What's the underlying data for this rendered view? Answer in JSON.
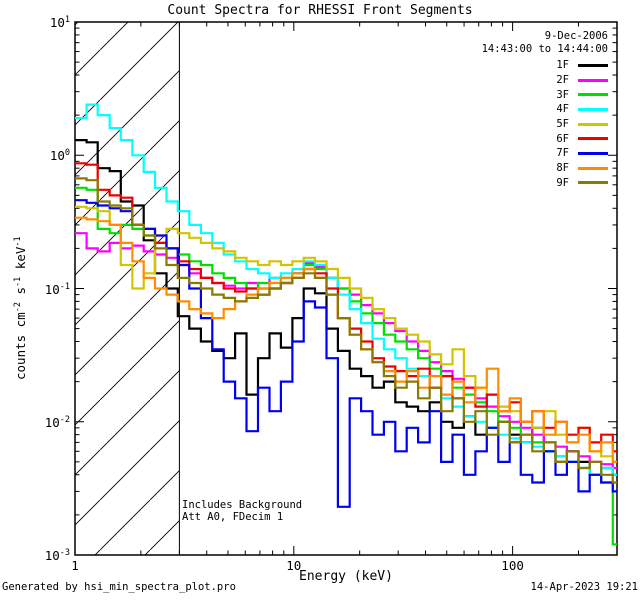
{
  "title": "Count Spectra for RHESSI Front Segments",
  "header": {
    "date_line1": "9-Dec-2006",
    "date_line2": "14:43:00 to 14:44:00"
  },
  "annotations": {
    "line1": "Includes Background",
    "line2": "Att A0, FDecim 1"
  },
  "footer": {
    "left": "Generated by hsi_min_spectra_plot.pro",
    "right": "14-Apr-2023 19:21"
  },
  "chart_data": {
    "type": "line",
    "style": "histogram-step",
    "title": "Count Spectra for RHESSI Front Segments",
    "xlabel": "Energy (keV)",
    "ylabel_plain": "counts cm^-2 s^-1 keV^-1",
    "ylabel_segments": [
      {
        "t": "counts cm"
      },
      {
        "t": "-2",
        "sup": true
      },
      {
        "t": " s"
      },
      {
        "t": "-1",
        "sup": true
      },
      {
        "t": " keV"
      },
      {
        "t": "-1",
        "sup": true
      }
    ],
    "xscale": "log",
    "yscale": "log",
    "xlim": [
      1,
      300
    ],
    "ylim": [
      0.001,
      10
    ],
    "xticks": [
      1,
      10,
      100
    ],
    "ytick_exponents": [
      1,
      0,
      -1,
      -2,
      -3
    ],
    "grid": false,
    "legend_position": "top-right",
    "excluded_region": {
      "xmin": 1,
      "xmax": 3,
      "style": "diagonal-hatch"
    },
    "x": [
      1.0,
      1.13,
      1.27,
      1.44,
      1.62,
      1.83,
      2.06,
      2.32,
      2.62,
      2.95,
      3.33,
      3.76,
      4.24,
      4.78,
      5.39,
      6.08,
      6.86,
      7.74,
      8.73,
      9.85,
      11.1,
      12.5,
      14.1,
      15.9,
      18.0,
      20.3,
      22.9,
      25.8,
      29.1,
      32.8,
      37.0,
      41.8,
      47.1,
      53.1,
      59.9,
      67.6,
      76.2,
      86.0,
      97.0,
      109,
      123,
      139,
      157,
      177,
      200,
      225,
      254,
      287
    ],
    "series": [
      {
        "name": "1F",
        "color": "#000000",
        "values": [
          1.3,
          1.25,
          0.8,
          0.76,
          0.45,
          0.42,
          0.23,
          0.13,
          0.1,
          0.062,
          0.05,
          0.04,
          0.034,
          0.03,
          0.046,
          0.016,
          0.03,
          0.046,
          0.036,
          0.06,
          0.1,
          0.092,
          0.05,
          0.034,
          0.025,
          0.022,
          0.018,
          0.02,
          0.014,
          0.013,
          0.012,
          0.014,
          0.01,
          0.009,
          0.011,
          0.008,
          0.009,
          0.01,
          0.008,
          0.007,
          0.009,
          0.006,
          0.005,
          0.006,
          0.005,
          0.004,
          0.0045,
          0.004
        ]
      },
      {
        "name": "2F",
        "color": "#ff00ff",
        "values": [
          0.26,
          0.2,
          0.19,
          0.22,
          0.2,
          0.21,
          0.19,
          0.18,
          0.17,
          0.15,
          0.13,
          0.12,
          0.11,
          0.105,
          0.1,
          0.11,
          0.1,
          0.12,
          0.11,
          0.13,
          0.155,
          0.145,
          0.12,
          0.1,
          0.09,
          0.075,
          0.065,
          0.055,
          0.048,
          0.04,
          0.034,
          0.028,
          0.024,
          0.021,
          0.018,
          0.015,
          0.013,
          0.011,
          0.01,
          0.009,
          0.008,
          0.007,
          0.0065,
          0.006,
          0.0055,
          0.005,
          0.0048,
          0.0045
        ]
      },
      {
        "name": "3F",
        "color": "#00e000",
        "values": [
          0.57,
          0.55,
          0.28,
          0.26,
          0.3,
          0.28,
          0.25,
          0.22,
          0.2,
          0.18,
          0.16,
          0.15,
          0.13,
          0.12,
          0.11,
          0.1,
          0.11,
          0.1,
          0.12,
          0.13,
          0.15,
          0.14,
          0.12,
          0.1,
          0.08,
          0.065,
          0.055,
          0.045,
          0.04,
          0.035,
          0.03,
          0.025,
          0.022,
          0.018,
          0.016,
          0.014,
          0.012,
          0.01,
          0.009,
          0.008,
          0.007,
          0.006,
          0.0055,
          0.005,
          0.0045,
          0.004,
          0.0035,
          0.0012
        ]
      },
      {
        "name": "4F",
        "color": "#00ffff",
        "values": [
          1.9,
          2.4,
          2.0,
          1.6,
          1.3,
          1.0,
          0.75,
          0.57,
          0.45,
          0.38,
          0.3,
          0.26,
          0.22,
          0.18,
          0.16,
          0.14,
          0.13,
          0.12,
          0.13,
          0.14,
          0.16,
          0.15,
          0.12,
          0.09,
          0.07,
          0.055,
          0.042,
          0.035,
          0.03,
          0.025,
          0.022,
          0.018,
          0.015,
          0.013,
          0.011,
          0.01,
          0.009,
          0.008,
          0.0075,
          0.007,
          0.0065,
          0.006,
          0.0055,
          0.005,
          0.0045,
          0.004,
          0.0045,
          0.004
        ]
      },
      {
        "name": "5F",
        "color": "#d1c400",
        "values": [
          0.41,
          0.4,
          0.38,
          0.3,
          0.15,
          0.1,
          0.13,
          0.25,
          0.28,
          0.26,
          0.24,
          0.22,
          0.2,
          0.19,
          0.17,
          0.16,
          0.15,
          0.16,
          0.15,
          0.16,
          0.17,
          0.16,
          0.14,
          0.12,
          0.1,
          0.085,
          0.07,
          0.06,
          0.05,
          0.045,
          0.04,
          0.032,
          0.027,
          0.035,
          0.022,
          0.018,
          0.016,
          0.013,
          0.012,
          0.01,
          0.009,
          0.012,
          0.008,
          0.007,
          0.009,
          0.006,
          0.0055,
          0.005
        ]
      },
      {
        "name": "6F",
        "color": "#ee0000",
        "values": [
          0.87,
          0.85,
          0.55,
          0.5,
          0.48,
          0.3,
          0.28,
          0.22,
          0.2,
          0.16,
          0.14,
          0.12,
          0.11,
          0.1,
          0.095,
          0.1,
          0.09,
          0.1,
          0.11,
          0.12,
          0.14,
          0.13,
          0.1,
          0.06,
          0.05,
          0.04,
          0.03,
          0.026,
          0.024,
          0.022,
          0.025,
          0.018,
          0.022,
          0.015,
          0.018,
          0.013,
          0.016,
          0.012,
          0.014,
          0.01,
          0.012,
          0.009,
          0.01,
          0.008,
          0.009,
          0.007,
          0.008,
          0.006
        ]
      },
      {
        "name": "7F",
        "color": "#0000f0",
        "values": [
          0.46,
          0.44,
          0.42,
          0.4,
          0.38,
          0.3,
          0.28,
          0.25,
          0.2,
          0.15,
          0.1,
          0.06,
          0.035,
          0.02,
          0.015,
          0.0085,
          0.018,
          0.012,
          0.02,
          0.04,
          0.08,
          0.072,
          0.03,
          0.0023,
          0.015,
          0.012,
          0.008,
          0.01,
          0.006,
          0.009,
          0.007,
          0.012,
          0.005,
          0.008,
          0.004,
          0.006,
          0.009,
          0.005,
          0.007,
          0.004,
          0.0035,
          0.006,
          0.004,
          0.005,
          0.003,
          0.004,
          0.0035,
          0.003
        ]
      },
      {
        "name": "8F",
        "color": "#ff8c00",
        "values": [
          0.34,
          0.33,
          0.32,
          0.3,
          0.22,
          0.16,
          0.12,
          0.1,
          0.09,
          0.08,
          0.07,
          0.065,
          0.06,
          0.07,
          0.08,
          0.09,
          0.1,
          0.11,
          0.12,
          0.13,
          0.14,
          0.12,
          0.09,
          0.06,
          0.045,
          0.035,
          0.028,
          0.024,
          0.02,
          0.024,
          0.018,
          0.022,
          0.016,
          0.02,
          0.014,
          0.018,
          0.025,
          0.012,
          0.015,
          0.01,
          0.012,
          0.008,
          0.01,
          0.007,
          0.008,
          0.006,
          0.007,
          0.005
        ]
      },
      {
        "name": "9F",
        "color": "#8a7a00",
        "values": [
          0.67,
          0.65,
          0.45,
          0.42,
          0.4,
          0.3,
          0.25,
          0.2,
          0.15,
          0.12,
          0.11,
          0.1,
          0.09,
          0.085,
          0.08,
          0.085,
          0.09,
          0.1,
          0.11,
          0.12,
          0.13,
          0.12,
          0.09,
          0.06,
          0.045,
          0.035,
          0.028,
          0.022,
          0.018,
          0.02,
          0.015,
          0.018,
          0.012,
          0.015,
          0.01,
          0.012,
          0.008,
          0.01,
          0.007,
          0.008,
          0.006,
          0.007,
          0.005,
          0.006,
          0.0045,
          0.005,
          0.004,
          0.0035
        ]
      }
    ]
  }
}
